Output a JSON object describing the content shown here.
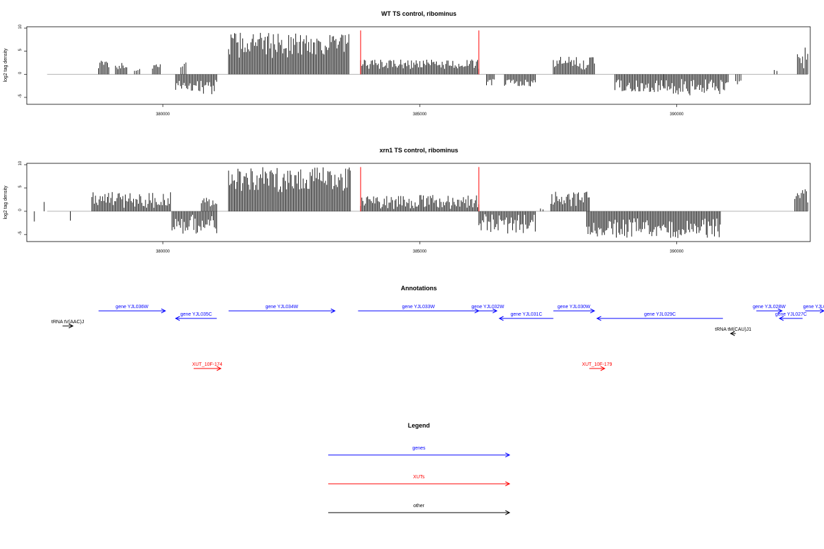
{
  "colors": {
    "gene": "#0000ff",
    "xut": "#ff0000",
    "other": "#000000",
    "bars": "#000000",
    "baseline": "#999999",
    "marker": "#ff0000"
  },
  "chart_data": [
    {
      "type": "bar",
      "title": "WT TS control, ribominus",
      "ylabel": "log2 tag density",
      "xlim": [
        377500,
        392600
      ],
      "ylim": [
        -6.2,
        10
      ],
      "yticks": [
        -5,
        0,
        5,
        10
      ],
      "xticks": [
        380000,
        385000,
        390000
      ],
      "xtick_labels": [
        "380000",
        "385000",
        "390000"
      ],
      "grid": false,
      "markers_x": [
        383850,
        386150
      ],
      "segments": [
        {
          "x0": 378750,
          "x1": 378950,
          "min": 1.2,
          "max": 3.0
        },
        {
          "x0": 379080,
          "x1": 379300,
          "min": 1.0,
          "max": 2.5
        },
        {
          "x0": 379450,
          "x1": 379550,
          "min": 0.5,
          "max": 1.4
        },
        {
          "x0": 379800,
          "x1": 379950,
          "min": 1.0,
          "max": 2.2
        },
        {
          "x0": 380350,
          "x1": 380450,
          "min": 1.2,
          "max": 2.6
        },
        {
          "x0": 380250,
          "x1": 381050,
          "min": -4.4,
          "max": -1.0
        },
        {
          "x0": 381280,
          "x1": 383620,
          "min": 3.5,
          "max": 9.0
        },
        {
          "x0": 383850,
          "x1": 386150,
          "min": 1.0,
          "max": 3.2
        },
        {
          "x0": 386300,
          "x1": 386450,
          "min": -2.6,
          "max": -1.0
        },
        {
          "x0": 386650,
          "x1": 387250,
          "min": -2.6,
          "max": -1.0
        },
        {
          "x0": 387600,
          "x1": 388400,
          "min": 1.0,
          "max": 3.8
        },
        {
          "x0": 388800,
          "x1": 389750,
          "min": -4.0,
          "max": -1.0
        },
        {
          "x0": 389750,
          "x1": 391000,
          "min": -4.6,
          "max": -1.0
        },
        {
          "x0": 391150,
          "x1": 391250,
          "min": -2.2,
          "max": -1.0
        },
        {
          "x0": 391900,
          "x1": 391950,
          "min": 0.3,
          "max": 1.0
        },
        {
          "x0": 392350,
          "x1": 392550,
          "min": 1.0,
          "max": 6.0
        }
      ]
    },
    {
      "type": "bar",
      "title": "xrn1 TS control, ribominus",
      "ylabel": "log2 tag density",
      "xlim": [
        377500,
        392600
      ],
      "ylim": [
        -6.2,
        10
      ],
      "yticks": [
        -5,
        0,
        5,
        10
      ],
      "xticks": [
        380000,
        385000,
        390000
      ],
      "xtick_labels": [
        "380000",
        "385000",
        "390000"
      ],
      "grid": false,
      "markers_x": [
        383850,
        386150
      ],
      "segments": [
        {
          "x0": 377500,
          "x1": 377530,
          "min": -2.2,
          "max": -2.2
        },
        {
          "x0": 377690,
          "x1": 377720,
          "min": 2.0,
          "max": 2.0
        },
        {
          "x0": 378200,
          "x1": 378230,
          "min": -2.0,
          "max": -2.0
        },
        {
          "x0": 378620,
          "x1": 380150,
          "min": 0.5,
          "max": 4.2
        },
        {
          "x0": 380180,
          "x1": 381050,
          "min": -4.8,
          "max": -0.5
        },
        {
          "x0": 380750,
          "x1": 381050,
          "min": 1.0,
          "max": 3.2
        },
        {
          "x0": 381280,
          "x1": 383650,
          "min": 4.0,
          "max": 9.5
        },
        {
          "x0": 383850,
          "x1": 386150,
          "min": 0.5,
          "max": 3.5
        },
        {
          "x0": 386150,
          "x1": 387250,
          "min": -4.8,
          "max": -0.5
        },
        {
          "x0": 387350,
          "x1": 387400,
          "min": 0.3,
          "max": 1.0
        },
        {
          "x0": 387550,
          "x1": 388300,
          "min": 1.0,
          "max": 4.2
        },
        {
          "x0": 388250,
          "x1": 390850,
          "min": -5.8,
          "max": -1.5
        },
        {
          "x0": 392300,
          "x1": 392550,
          "min": 1.5,
          "max": 5.5
        }
      ]
    },
    {
      "type": "annotation",
      "title": "Annotations",
      "xlim": [
        377500,
        392600
      ],
      "features": [
        {
          "label": "gene YJL036W",
          "start": 378750,
          "end": 380050,
          "strand": "+",
          "kind": "gene",
          "row": 0
        },
        {
          "label": "gene YJL035C",
          "start": 380250,
          "end": 381050,
          "strand": "-",
          "kind": "gene",
          "row": 1
        },
        {
          "label": "tRNA tV(AAC)J",
          "start": 378050,
          "end": 378250,
          "strand": "+",
          "kind": "other",
          "row": 2
        },
        {
          "label": "gene YJL034W",
          "start": 381280,
          "end": 383350,
          "strand": "+",
          "kind": "gene",
          "row": 0
        },
        {
          "label": "gene YJL033W",
          "start": 383800,
          "end": 386150,
          "strand": "+",
          "kind": "gene",
          "row": 0
        },
        {
          "label": "gene YJL032W",
          "start": 386150,
          "end": 386500,
          "strand": "+",
          "kind": "gene",
          "row": 0
        },
        {
          "label": "gene YJL031C",
          "start": 386550,
          "end": 387600,
          "strand": "-",
          "kind": "gene",
          "row": 1
        },
        {
          "label": "gene YJL030W",
          "start": 387600,
          "end": 388400,
          "strand": "+",
          "kind": "gene",
          "row": 0
        },
        {
          "label": "gene YJL029C",
          "start": 388450,
          "end": 390900,
          "strand": "-",
          "kind": "gene",
          "row": 1
        },
        {
          "label": "tRNA tM(CAU)J1",
          "start": 391050,
          "end": 391150,
          "strand": "-",
          "kind": "other",
          "row": 3
        },
        {
          "label": "gene YJL028W",
          "start": 391550,
          "end": 392050,
          "strand": "+",
          "kind": "gene",
          "row": 0
        },
        {
          "label": "gene YJL027C",
          "start": 392000,
          "end": 392450,
          "strand": "-",
          "kind": "gene",
          "row": 1
        },
        {
          "label": "gene YJL0",
          "start": 392500,
          "end": 392950,
          "strand": "+",
          "kind": "gene",
          "row": 0
        },
        {
          "label": "XUT_10F-174",
          "start": 380600,
          "end": 381130,
          "strand": "+",
          "kind": "xut",
          "row": 4
        },
        {
          "label": "XUT_10F-179",
          "start": 388300,
          "end": 388600,
          "strand": "+",
          "kind": "xut",
          "row": 4
        }
      ]
    },
    {
      "type": "legend",
      "title": "Legend",
      "entries": [
        {
          "label": "genes",
          "kind": "gene"
        },
        {
          "label": "XUTs",
          "kind": "xut"
        },
        {
          "label": "other",
          "kind": "other"
        }
      ]
    }
  ]
}
